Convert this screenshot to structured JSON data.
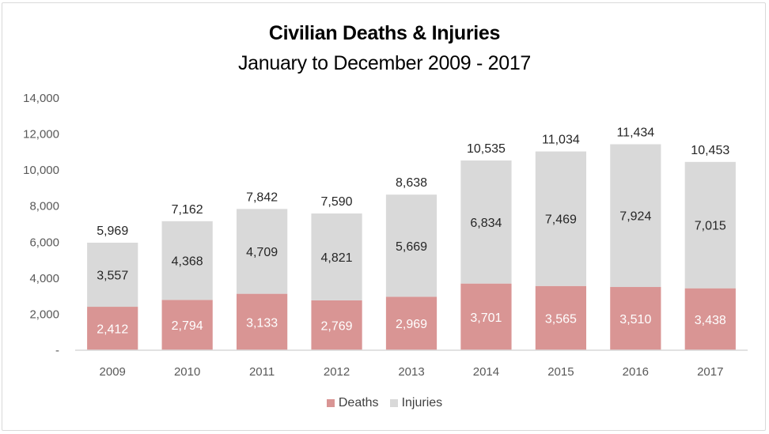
{
  "chart_data": {
    "type": "bar",
    "stacked": true,
    "title": "Civilian Deaths & Injuries",
    "subtitle": "January to December 2009 - 2017",
    "xlabel": "",
    "ylabel": "",
    "ylim": [
      0,
      14000
    ],
    "yticks": [
      0,
      2000,
      4000,
      6000,
      8000,
      10000,
      12000,
      14000
    ],
    "ytick_labels": [
      "-",
      "2,000",
      "4,000",
      "6,000",
      "8,000",
      "10,000",
      "12,000",
      "14,000"
    ],
    "grid": false,
    "categories": [
      "2009",
      "2010",
      "2011",
      "2012",
      "2013",
      "2014",
      "2015",
      "2016",
      "2017"
    ],
    "series": [
      {
        "name": "Deaths",
        "color": "#d99594",
        "label_color": "#ffffff",
        "values": [
          2412,
          2794,
          3133,
          2769,
          2969,
          3701,
          3565,
          3510,
          3438
        ],
        "labels": [
          "2,412",
          "2,794",
          "3,133",
          "2,769",
          "2,969",
          "3,701",
          "3,565",
          "3,510",
          "3,438"
        ]
      },
      {
        "name": "Injuries",
        "color": "#d9d9d9",
        "label_color": "#262626",
        "values": [
          3557,
          4368,
          4709,
          4821,
          5669,
          6834,
          7469,
          7924,
          7015
        ],
        "labels": [
          "3,557",
          "4,368",
          "4,709",
          "4,821",
          "5,669",
          "6,834",
          "7,469",
          "7,924",
          "7,015"
        ]
      }
    ],
    "totals": [
      5969,
      7162,
      7842,
      7590,
      8638,
      10535,
      11034,
      11434,
      10453
    ],
    "total_labels": [
      "5,969",
      "7,162",
      "7,842",
      "7,590",
      "8,638",
      "10,535",
      "11,034",
      "11,434",
      "10,453"
    ],
    "legend": {
      "position": "bottom",
      "entries": [
        "Deaths",
        "Injuries"
      ]
    }
  }
}
